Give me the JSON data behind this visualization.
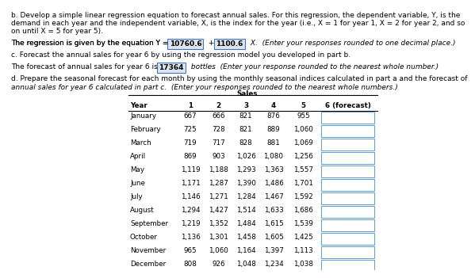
{
  "text_b_line1": "b. Develop a simple linear regression equation to forecast annual sales. For this regression, the dependent variable, Y, is the",
  "text_b_line2": "demand in each year and the independent variable, X, is the index for the year (i.e., X = 1 for year 1, X = 2 for year 2, and so",
  "text_b_line3": "on until X = 5 for year 5).",
  "text_regression_prefix": "The regression is given by the equation Y = ",
  "text_regression_val1": "10760.6",
  "text_regression_mid": " + ",
  "text_regression_val2": "1100.6",
  "text_regression_suffix": " X.  (Enter your responses rounded to one decimal place.)",
  "text_c": "c. Forecast the annual sales for year 6 by using the regression model you developed in part b.",
  "text_forecast_prefix": "The forecast of annual sales for year 6 is ",
  "text_forecast_val": "17364",
  "text_forecast_suffix": " bottles  (Enter your response rounded to the nearest whole number.)",
  "text_d_line1": "d. Prepare the seasonal forecast for each month by using the monthly seasonal indices calculated in part a and the forecast of",
  "text_d_line2": "annual sales for year 6 calculated in part c.  (Enter your responses rounded to the nearest whole numbers.)",
  "table_header_span": "Sales",
  "table_cols": [
    "Year",
    "1",
    "2",
    "3",
    "4",
    "5",
    "6 (forecast)"
  ],
  "table_months": [
    "January",
    "February",
    "March",
    "April",
    "May",
    "June",
    "July",
    "August",
    "September",
    "October",
    "November",
    "December"
  ],
  "table_data": [
    [
      "667",
      "666",
      "821",
      "876",
      "955"
    ],
    [
      "725",
      "728",
      "821",
      "889",
      "1,060"
    ],
    [
      "719",
      "717",
      "828",
      "881",
      "1,069"
    ],
    [
      "869",
      "903",
      "1,026",
      "1,080",
      "1,256"
    ],
    [
      "1,119",
      "1,188",
      "1,293",
      "1,363",
      "1,557"
    ],
    [
      "1,171",
      "1,287",
      "1,390",
      "1,486",
      "1,701"
    ],
    [
      "1,146",
      "1,271",
      "1,284",
      "1,467",
      "1,592"
    ],
    [
      "1,294",
      "1,427",
      "1,514",
      "1,633",
      "1,686"
    ],
    [
      "1,219",
      "1,352",
      "1,484",
      "1,615",
      "1,539"
    ],
    [
      "1,136",
      "1,301",
      "1,458",
      "1,605",
      "1,425"
    ],
    [
      "965",
      "1,060",
      "1,164",
      "1,397",
      "1,113"
    ],
    [
      "808",
      "926",
      "1,048",
      "1,234",
      "1,038"
    ]
  ],
  "fs_body": 6.5,
  "fs_table": 6.3,
  "background": "#ffffff"
}
